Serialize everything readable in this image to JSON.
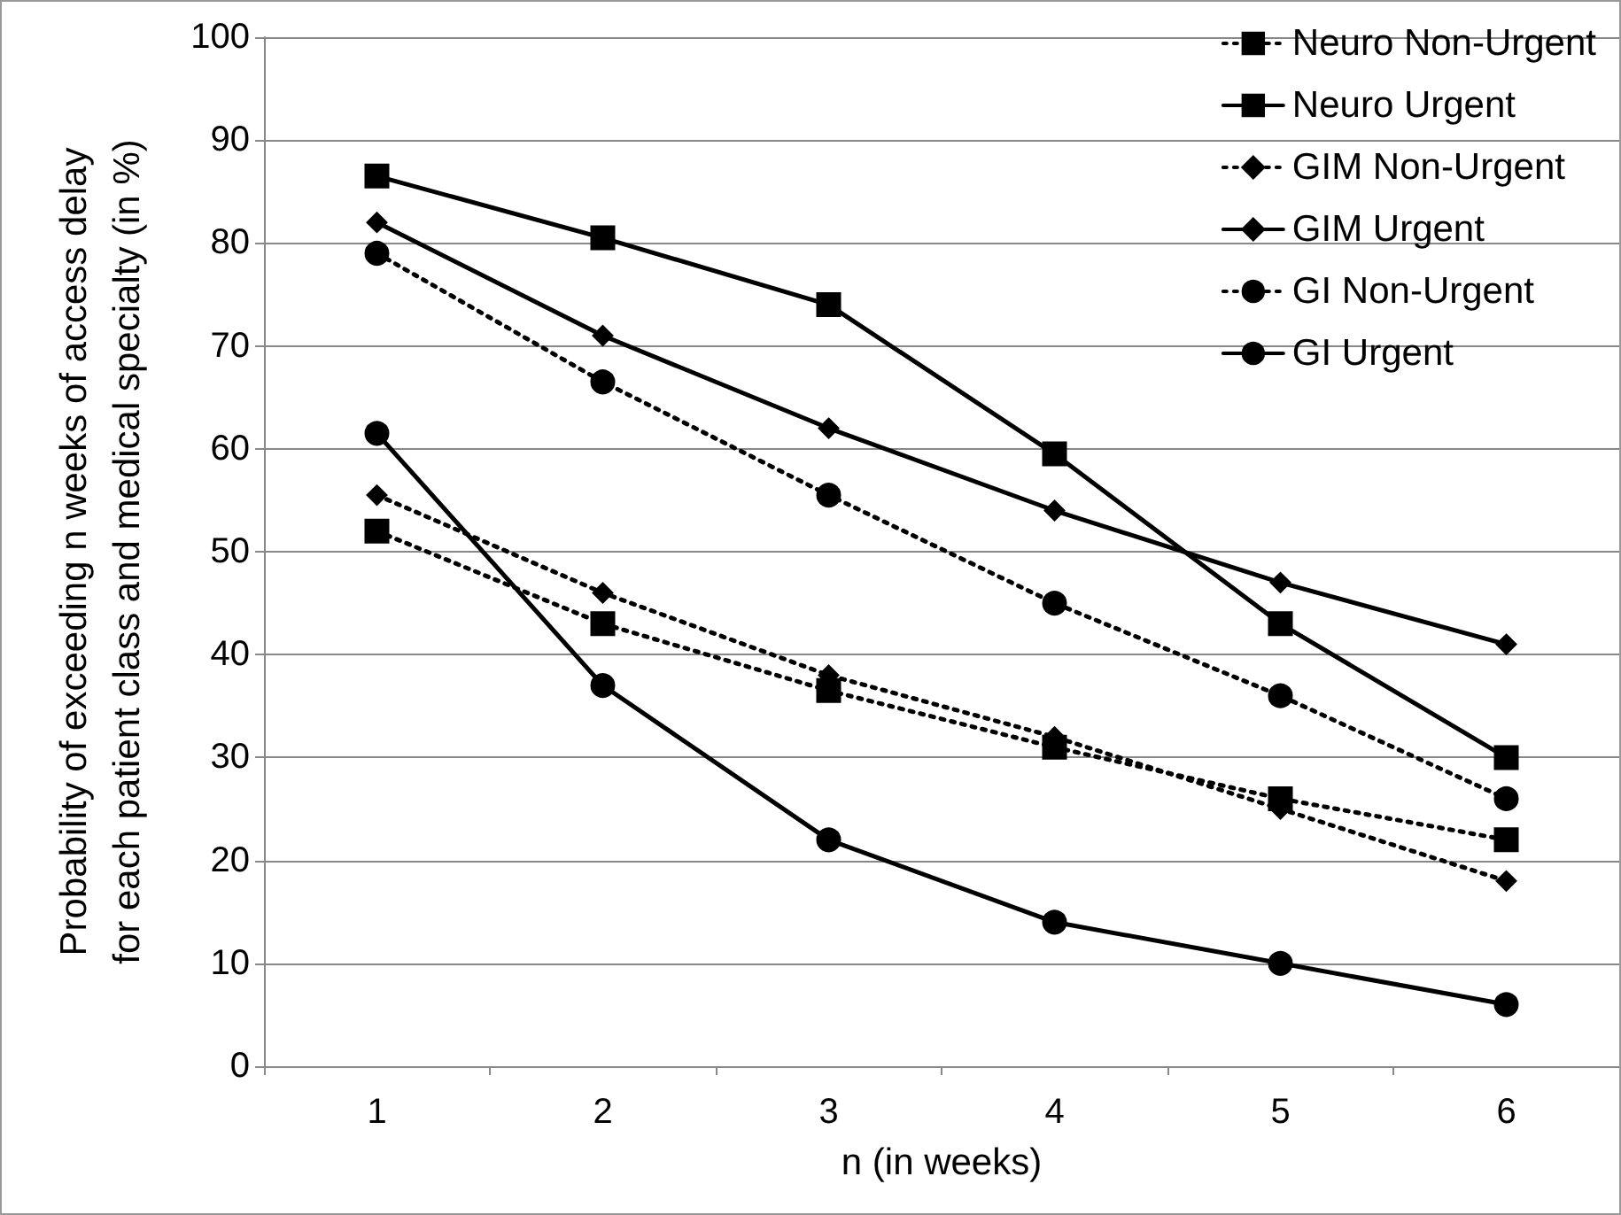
{
  "chart_data": {
    "type": "line",
    "xlabel": "n (in weeks)",
    "ylabel": "Probability of exceeding n weeks of access delay\nfor each patient class and medical specialty (in %)",
    "categories": [
      "1",
      "2",
      "3",
      "4",
      "5",
      "6"
    ],
    "ylim": [
      0,
      100
    ],
    "yticks": [
      0,
      10,
      20,
      30,
      40,
      50,
      60,
      70,
      80,
      90,
      100
    ],
    "grid": "y",
    "legend": "top right",
    "series": [
      {
        "name": "Neuro Non-Urgent",
        "color": "#000000",
        "marker": "square",
        "line_style": "dotted",
        "values": [
          52,
          43,
          36.5,
          31,
          26,
          22
        ]
      },
      {
        "name": "Neuro Urgent",
        "color": "#000000",
        "marker": "square",
        "line_style": "solid",
        "values": [
          86.5,
          80.5,
          74,
          59.5,
          43,
          30
        ]
      },
      {
        "name": "GIM Non-Urgent",
        "color": "#000000",
        "marker": "diamond",
        "line_style": "dotted",
        "values": [
          55.5,
          46,
          38,
          32,
          25,
          18
        ]
      },
      {
        "name": "GIM Urgent",
        "color": "#000000",
        "marker": "diamond",
        "line_style": "solid",
        "values": [
          82,
          71,
          62,
          54,
          47,
          41
        ]
      },
      {
        "name": "GI Non-Urgent",
        "color": "#000000",
        "marker": "circle",
        "line_style": "dotted",
        "values": [
          79,
          66.5,
          55.5,
          45,
          36,
          26
        ]
      },
      {
        "name": "GI Urgent",
        "color": "#000000",
        "marker": "circle",
        "line_style": "solid",
        "values": [
          61.5,
          37,
          22,
          14,
          10,
          6
        ]
      }
    ]
  }
}
